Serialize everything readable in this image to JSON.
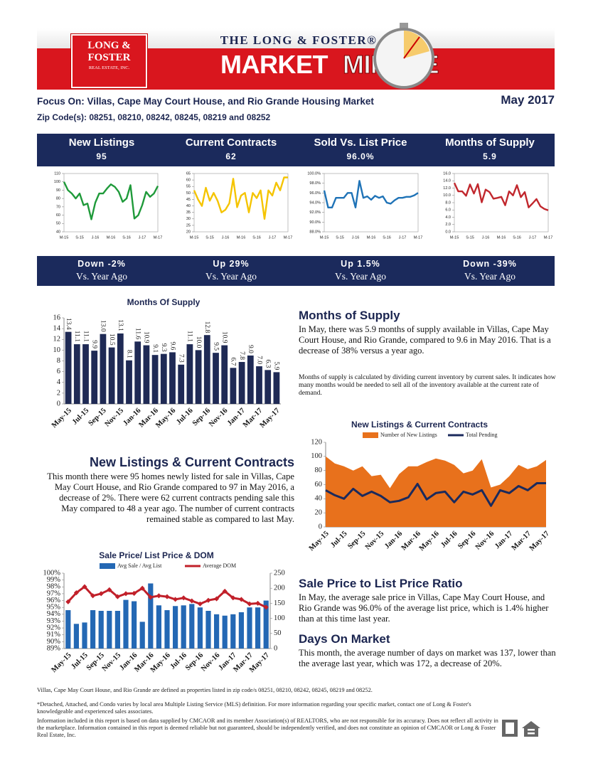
{
  "header": {
    "logo": [
      "LONG &",
      "FOSTER",
      "REAL ESTATE, INC."
    ],
    "brand": "THE LONG & FOSTER®",
    "title_left": "MARKET",
    "title_right": "MINUTE"
  },
  "focus": "Focus On: Villas, Cape May Court House, and Rio Grande Housing Market",
  "date": "May 2017",
  "zip": "Zip Code(s): 08251, 08210, 08242, 08245, 08219 and 08252",
  "kpis": [
    {
      "title": "New Listings",
      "value": "95",
      "change": "Down  -2%",
      "comparison": "Vs. Year Ago"
    },
    {
      "title": "Current Contracts",
      "value": "62",
      "change": "Up  29%",
      "comparison": "Vs. Year Ago"
    },
    {
      "title": "Sold Vs. List Price",
      "value": "96.0%",
      "change": "Up  1.5%",
      "comparison": "Vs. Year Ago"
    },
    {
      "title": "Months of Supply",
      "value": "5.9",
      "change": "Down  -39%",
      "comparison": "Vs. Year Ago"
    }
  ],
  "sections": [
    {
      "heading": "Months of Supply",
      "paragraphs": [
        "In May, there was 5.9 months of supply available in Villas, Cape May Court House, and Rio Grande, compared to 9.6 in May 2016. That is a decrease of 38% versus a year ago.",
        "Months of supply is calculated by dividing current inventory by current sales. It indicates how many months would be needed to sell all of the inventory available at the current rate of demand."
      ]
    },
    {
      "heading": "New Listings & Current Contracts",
      "paragraphs": [
        "This month there were 95 homes newly listed for sale in Villas, Cape May Court House, and Rio Grande compared to 97 in May 2016, a decrease of 2%. There were 62 current contracts pending sale this May compared to 48 a year ago. The number of current contracts remained stable as compared to last  May."
      ]
    },
    {
      "heading": "Sale Price to List Price Ratio",
      "paragraphs": [
        "In May, the average sale price in Villas, Cape May Court House, and Rio Grande was 96.0% of the average list price, which is 1.4% higher than at this time last year."
      ]
    },
    {
      "heading": "Days On Market",
      "paragraphs": [
        "This month, the average number of days on market was 137, lower than the average last year, which was 172, a decrease of 20%."
      ]
    }
  ],
  "footer": {
    "definition": "Villas, Cape May Court House, and Rio Grande are defined as properties listed in zip code/s 08251, 08210, 08242, 08245, 08219 and 08252.",
    "notes": [
      "*Detached, Attached, and Condo varies by local area Multiple Listing Service (MLS) definition. For more information regarding your specific market, contact one of Long & Foster's knowledgeable and experienced sales associates.",
      "Information included in this report is based on data supplied by CMCAOR and its member Association(s) of REALTORS, who are not responsible for its accuracy.  Does not reflect all activity in the marketplace.  Information contained in this report is deemed reliable but not guaranteed, should be independently verified, and does not constitute an opinion of CMCAOR or Long & Foster Real Estate, Inc."
    ]
  },
  "chart_data": [
    {
      "type": "line",
      "color": "#1f9a3a",
      "categories": [
        "M-15",
        null,
        null,
        null,
        "S-15",
        null,
        null,
        null,
        "J-16",
        null,
        null,
        null,
        "M-16",
        null,
        null,
        null,
        "S-16",
        null,
        null,
        null,
        "J-17",
        null,
        null,
        null,
        "M-17"
      ],
      "values": [
        100,
        90,
        86,
        80,
        86,
        72,
        74,
        55,
        75,
        86,
        86,
        92,
        97,
        94,
        88,
        76,
        80,
        96,
        56,
        60,
        72,
        88,
        82,
        86,
        95
      ],
      "ylim": [
        40,
        110
      ],
      "yticks": [
        40,
        50,
        60,
        70,
        80,
        90,
        100,
        110
      ]
    },
    {
      "type": "line",
      "color": "#f5c400",
      "categories": [
        "M-15",
        null,
        null,
        null,
        "S-15",
        null,
        null,
        null,
        "J-16",
        null,
        null,
        null,
        "M-16",
        null,
        null,
        null,
        "S-16",
        null,
        null,
        null,
        "J-17",
        null,
        null,
        null,
        "M-17"
      ],
      "values": [
        52,
        45,
        40,
        54,
        44,
        50,
        44,
        35,
        37,
        42,
        61,
        39,
        48,
        50,
        35,
        50,
        46,
        52,
        30,
        52,
        48,
        58,
        52,
        62,
        62
      ],
      "ylim": [
        20,
        65
      ],
      "yticks": [
        20,
        25,
        30,
        35,
        40,
        45,
        50,
        55,
        60,
        65
      ]
    },
    {
      "type": "line",
      "color": "#1f73b7",
      "categories": [
        "M-15",
        null,
        null,
        null,
        "S-15",
        null,
        null,
        null,
        "J-16",
        null,
        null,
        null,
        "M-16",
        null,
        null,
        null,
        "S-16",
        null,
        null,
        null,
        "J-17",
        null,
        null,
        null,
        "M-17"
      ],
      "values": [
        96.5,
        93,
        93,
        95,
        95,
        95,
        96,
        96,
        93,
        98.5,
        95,
        95.3,
        94.6,
        95.4,
        95,
        95.3,
        94,
        93.8,
        94.5,
        95,
        95,
        95.2,
        95.2,
        95.5,
        96
      ],
      "ylim": [
        88,
        100
      ],
      "yticks": [
        {
          "value": 88,
          "label": "88.0%"
        },
        {
          "value": 90,
          "label": "90.0%"
        },
        {
          "value": 92,
          "label": "92.0%"
        },
        {
          "value": 94,
          "label": "94.0%"
        },
        {
          "value": 96,
          "label": "96.0%"
        },
        {
          "value": 98,
          "label": "98.0%"
        },
        {
          "value": 100,
          "label": "100.0%"
        }
      ]
    },
    {
      "type": "line",
      "color": "#c1272d",
      "categories": [
        "M-15",
        null,
        null,
        null,
        "S-15",
        null,
        null,
        null,
        "J-16",
        null,
        null,
        null,
        "M-16",
        null,
        null,
        null,
        "S-16",
        null,
        null,
        null,
        "J-17",
        null,
        null,
        null,
        "M-17"
      ],
      "values": [
        13.4,
        11.1,
        11.1,
        9.9,
        13.0,
        10.5,
        13.1,
        8.1,
        11.6,
        10.9,
        9.1,
        9.3,
        9.6,
        7.3,
        11.1,
        10.0,
        12.8,
        9.5,
        10.9,
        6.7,
        7.8,
        9.0,
        7.0,
        6.3,
        5.9
      ],
      "ylim": [
        0,
        16
      ],
      "yticks": [
        {
          "value": 0,
          "label": "0.0"
        },
        {
          "value": 2,
          "label": "2.0"
        },
        {
          "value": 4,
          "label": "4.0"
        },
        {
          "value": 6,
          "label": "6.0"
        },
        {
          "value": 8,
          "label": "8.0"
        },
        {
          "value": 10,
          "label": "10.0"
        },
        {
          "value": 12,
          "label": "12.0"
        },
        {
          "value": 14,
          "label": "14.0"
        },
        {
          "value": 16,
          "label": "16.0"
        }
      ]
    },
    {
      "type": "bar",
      "title": "Months Of Supply",
      "color": "#1f2a55",
      "categories": [
        "May-15",
        null,
        "Jul-15",
        null,
        "Sep-15",
        null,
        "Nov-15",
        null,
        "Jan-16",
        null,
        "Mar-16",
        null,
        "May-16",
        null,
        "Jul-16",
        null,
        "Sep-16",
        null,
        "Nov-16",
        null,
        "Jan-17",
        null,
        "Mar-17",
        null,
        "May-17"
      ],
      "values": [
        13.4,
        11.1,
        11.1,
        9.9,
        13.0,
        10.5,
        13.1,
        8.1,
        11.6,
        10.9,
        9.1,
        9.3,
        9.6,
        7.3,
        11.1,
        10.0,
        12.8,
        9.5,
        10.9,
        6.7,
        7.8,
        9.0,
        7.0,
        6.3,
        5.9
      ],
      "value_labels": [
        "13.4",
        "11.1",
        "11.1",
        "9.9",
        "13.0",
        "10.5",
        "13.1",
        "8.1",
        "11.6",
        "10.9",
        "9.1",
        "9.3",
        "9.6",
        "7.3",
        "11.1",
        "10.0",
        "12.8",
        "9.5",
        "10.9",
        "6.7",
        "7.8",
        "9.0",
        "7.0",
        "6.3",
        "5.9"
      ],
      "ylim": [
        0,
        16
      ],
      "yticks": [
        0,
        2,
        4,
        6,
        8,
        10,
        12,
        14,
        16
      ]
    },
    {
      "type": "area",
      "title": "New Listings & Current Contracts",
      "legend": "top",
      "categories": [
        "May-15",
        null,
        "Jul-15",
        null,
        "Sep-15",
        null,
        "Nov-15",
        null,
        "Jan-16",
        null,
        "Mar-16",
        null,
        "May-16",
        null,
        "Jul-16",
        null,
        "Sep-16",
        null,
        "Nov-16",
        null,
        "Jan-17",
        null,
        "Mar-17",
        null,
        "May-17"
      ],
      "series": [
        {
          "name": "Number of New Listings",
          "type": "area",
          "color": "#e8711c",
          "values": [
            100,
            90,
            86,
            80,
            86,
            72,
            74,
            55,
            75,
            86,
            86,
            92,
            97,
            94,
            88,
            76,
            80,
            96,
            56,
            60,
            72,
            88,
            82,
            86,
            95
          ]
        },
        {
          "name": "Total Pending",
          "type": "line",
          "color": "#1b2a5c",
          "values": [
            52,
            45,
            40,
            54,
            44,
            50,
            44,
            35,
            37,
            42,
            61,
            39,
            48,
            50,
            35,
            50,
            46,
            52,
            30,
            52,
            48,
            58,
            52,
            62,
            62
          ]
        }
      ],
      "ylim": [
        0,
        120
      ],
      "yticks": [
        0,
        20,
        40,
        60,
        80,
        100,
        120
      ]
    },
    {
      "type": "bar",
      "title": "Sale Price/ List Price & DOM",
      "legend": "top",
      "categories": [
        "May-15",
        null,
        "Jul-15",
        null,
        "Sep-15",
        null,
        "Nov-15",
        null,
        "Jan-16",
        null,
        "Mar-16",
        null,
        "May-16",
        null,
        "Jul-16",
        null,
        "Sep-16",
        null,
        "Nov-16",
        null,
        "Jan-17",
        null,
        "Mar-17",
        null,
        "May-17"
      ],
      "series": [
        {
          "name": "Avg Sale / Avg List",
          "type": "bar",
          "color": "#2468b4",
          "values": [
            94.6,
            92.6,
            92.8,
            94.6,
            94.5,
            94.5,
            94.5,
            96.1,
            95.9,
            92.9,
            98.5,
            95.3,
            94.6,
            95.2,
            95.3,
            95.5,
            95.0,
            94.5,
            94.0,
            93.8,
            94.0,
            94.3,
            95.0,
            95.0,
            96.0
          ]
        },
        {
          "name": "Average DOM",
          "type": "line",
          "axis": "y2",
          "color": "#c1202a",
          "values": [
            155,
            185,
            205,
            175,
            182,
            195,
            172,
            182,
            183,
            200,
            170,
            175,
            172,
            163,
            168,
            158,
            148,
            160,
            165,
            190,
            168,
            163,
            148,
            150,
            137
          ]
        }
      ],
      "ylim": [
        89,
        100
      ],
      "yticks": [
        {
          "value": 89,
          "label": "89%"
        },
        {
          "value": 90,
          "label": "90%"
        },
        {
          "value": 91,
          "label": "91%"
        },
        {
          "value": 92,
          "label": "92%"
        },
        {
          "value": 93,
          "label": "93%"
        },
        {
          "value": 94,
          "label": "94%"
        },
        {
          "value": 95,
          "label": "95%"
        },
        {
          "value": 96,
          "label": "96%"
        },
        {
          "value": 97,
          "label": "97%"
        },
        {
          "value": 98,
          "label": "98%"
        },
        {
          "value": 99,
          "label": "99%"
        },
        {
          "value": 100,
          "label": "100%"
        }
      ],
      "y2lim": [
        0,
        250
      ],
      "y2ticks": [
        0,
        50,
        100,
        150,
        200,
        250
      ]
    }
  ]
}
